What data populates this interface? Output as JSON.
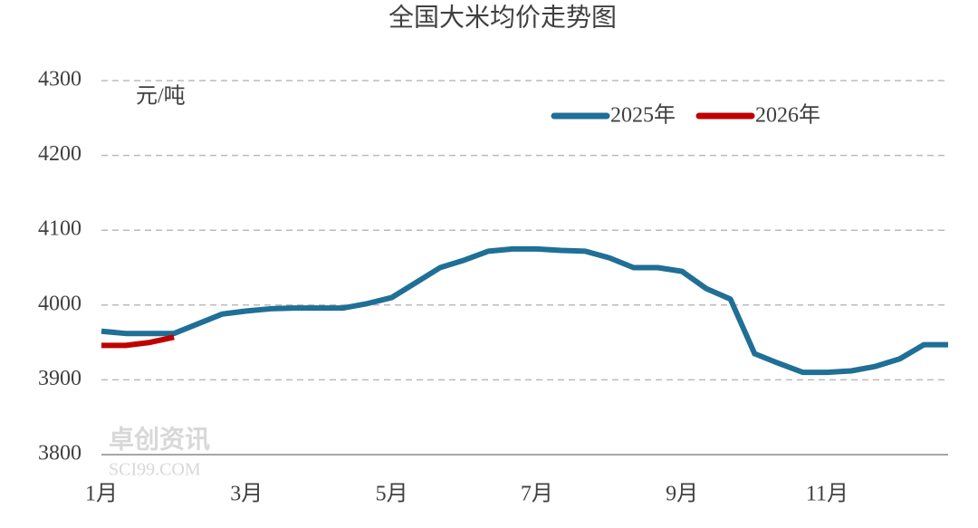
{
  "chart_data": {
    "type": "line",
    "title": "全国大米均价走势图",
    "y_label": "元/吨",
    "watermark": [
      "卓创资讯",
      "SCI99.COM"
    ],
    "categories": [
      "1月",
      null,
      null,
      null,
      null,
      null,
      "3月",
      null,
      null,
      null,
      null,
      null,
      "5月",
      null,
      null,
      null,
      null,
      null,
      "7月",
      null,
      null,
      null,
      null,
      null,
      "9月",
      null,
      null,
      null,
      null,
      null,
      "11月",
      null,
      null,
      null,
      null,
      null
    ],
    "series": [
      {
        "name": "2025年",
        "color": "#1f6f96",
        "values": [
          3965,
          3962,
          3962,
          3962,
          3975,
          3988,
          3992,
          3995,
          3996,
          3996,
          3996,
          4002,
          4010,
          4030,
          4050,
          4060,
          4072,
          4075,
          4075,
          4073,
          4072,
          4063,
          4050,
          4050,
          4045,
          4022,
          4008,
          3935,
          3922,
          3910,
          3910,
          3912,
          3918,
          3928,
          3947,
          3947
        ]
      },
      {
        "name": "2026年",
        "color": "#c00000",
        "values": [
          3946,
          3946,
          3950,
          3957,
          null,
          null,
          null,
          null,
          null,
          null,
          null,
          null,
          null,
          null,
          null,
          null,
          null,
          null,
          null,
          null,
          null,
          null,
          null,
          null,
          null,
          null,
          null,
          null,
          null,
          null,
          null,
          null,
          null,
          null,
          null,
          null
        ]
      }
    ],
    "ylim": [
      3800,
      4300
    ],
    "yticks": [
      3800,
      3900,
      4000,
      4100,
      4200,
      4300
    ],
    "grid": true,
    "legend": "top-right"
  }
}
